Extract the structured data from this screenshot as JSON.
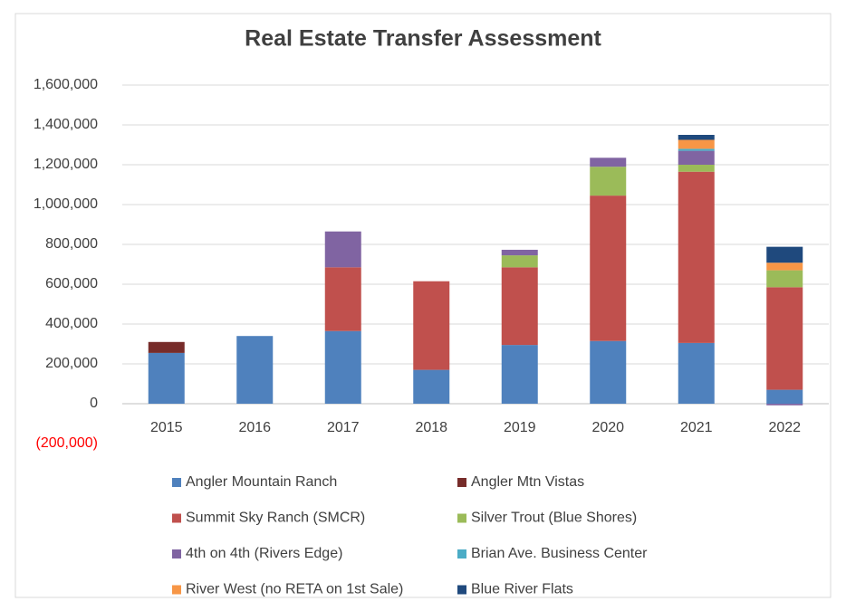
{
  "chart_data": {
    "type": "stacked_bar",
    "title": "Real Estate Transfer Assessment",
    "categories": [
      "2015",
      "2016",
      "2017",
      "2018",
      "2019",
      "2020",
      "2021",
      "2022"
    ],
    "series": [
      {
        "name": "Angler Mountain Ranch",
        "color": "#4f81bd",
        "values": [
          255000,
          340000,
          365000,
          170000,
          295000,
          315000,
          305000,
          70000
        ]
      },
      {
        "name": "Angler Mtn Vistas",
        "color": "#772c2a",
        "values": [
          55000,
          null,
          null,
          null,
          null,
          null,
          null,
          null
        ]
      },
      {
        "name": "Summit Sky Ranch (SMCR)",
        "color": "#c0504d",
        "values": [
          null,
          null,
          320000,
          445000,
          390000,
          730000,
          860000,
          515000
        ]
      },
      {
        "name": "Silver Trout (Blue Shores)",
        "color": "#9bbb59",
        "values": [
          null,
          null,
          null,
          null,
          60000,
          145000,
          35000,
          85000
        ]
      },
      {
        "name": "4th on 4th (Rivers Edge)",
        "color": "#8064a2",
        "values": [
          null,
          null,
          180000,
          null,
          28000,
          45000,
          70000,
          -8000
        ]
      },
      {
        "name": "Brian Ave. Business Center",
        "color": "#4bacc6",
        "values": [
          null,
          null,
          null,
          null,
          null,
          null,
          10000,
          null
        ]
      },
      {
        "name": "River West (no RETA on 1st Sale)",
        "color": "#f79646",
        "values": [
          null,
          null,
          null,
          null,
          null,
          null,
          45000,
          38000
        ]
      },
      {
        "name": "Blue River Flats",
        "color": "#1f497d",
        "values": [
          null,
          null,
          null,
          null,
          null,
          null,
          25000,
          80000
        ]
      }
    ],
    "ylim": [
      -200000,
      1600000
    ],
    "yticks": [
      {
        "value": -200000,
        "label": "(200,000)"
      },
      0,
      {
        "value": 200000,
        "label": "200,000"
      },
      {
        "value": 400000,
        "label": "400,000"
      },
      {
        "value": 600000,
        "label": "600,000"
      },
      {
        "value": 800000,
        "label": "800,000"
      },
      {
        "value": 1000000,
        "label": "1,000,000"
      },
      {
        "value": 1200000,
        "label": "1,200,000"
      },
      {
        "value": 1400000,
        "label": "1,400,000"
      },
      {
        "value": 1600000,
        "label": "1,600,000"
      }
    ],
    "grid": true
  }
}
